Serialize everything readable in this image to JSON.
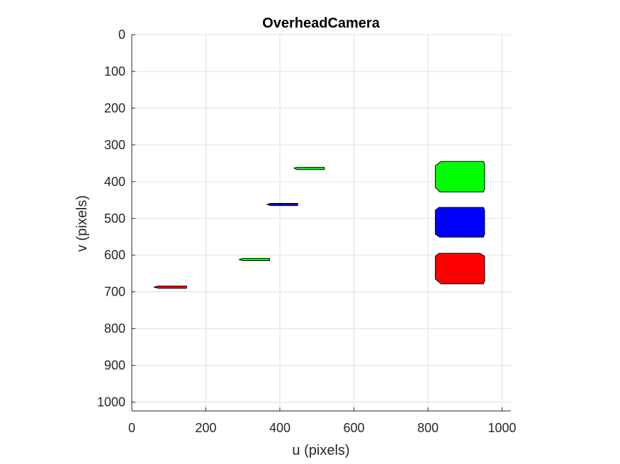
{
  "chart_data": {
    "type": "scatter",
    "title": "OverheadCamera",
    "xlabel": "u (pixels)",
    "ylabel": "v (pixels)",
    "xlim": [
      0,
      1024
    ],
    "ylim": [
      1024,
      0
    ],
    "y_reversed": true,
    "grid": true,
    "xticks": [
      0,
      200,
      400,
      600,
      800,
      1000
    ],
    "yticks": [
      0,
      100,
      200,
      300,
      400,
      500,
      600,
      700,
      800,
      900,
      1000
    ],
    "series": [
      {
        "color": "#00ff00",
        "points": [
          [
            950,
            345
          ],
          [
            835,
            345
          ],
          [
            820,
            357
          ],
          [
            820,
            415
          ],
          [
            832,
            428
          ],
          [
            950,
            428
          ],
          [
            953,
            420
          ],
          [
            953,
            353
          ]
        ]
      },
      {
        "color": "#0000ff",
        "points": [
          [
            950,
            470
          ],
          [
            830,
            470
          ],
          [
            820,
            478
          ],
          [
            820,
            543
          ],
          [
            832,
            551
          ],
          [
            950,
            551
          ],
          [
            953,
            543
          ],
          [
            953,
            478
          ]
        ]
      },
      {
        "color": "#ff0000",
        "points": [
          [
            940,
            595
          ],
          [
            830,
            595
          ],
          [
            820,
            603
          ],
          [
            820,
            665
          ],
          [
            835,
            678
          ],
          [
            950,
            678
          ],
          [
            953,
            670
          ],
          [
            953,
            603
          ]
        ]
      },
      {
        "color": "#00ff00",
        "points": [
          [
            438,
            363
          ],
          [
            446,
            361
          ],
          [
            520,
            361
          ],
          [
            520,
            367
          ],
          [
            446,
            367
          ]
        ]
      },
      {
        "color": "#0000ff",
        "points": [
          [
            365,
            462
          ],
          [
            375,
            459
          ],
          [
            448,
            459
          ],
          [
            448,
            465
          ],
          [
            375,
            465
          ]
        ]
      },
      {
        "color": "#00ff00",
        "points": [
          [
            290,
            612
          ],
          [
            300,
            609
          ],
          [
            372,
            609
          ],
          [
            372,
            615
          ],
          [
            300,
            615
          ]
        ]
      },
      {
        "color": "#ff0000",
        "points": [
          [
            60,
            687
          ],
          [
            72,
            684
          ],
          [
            148,
            684
          ],
          [
            148,
            690
          ],
          [
            72,
            690
          ]
        ]
      }
    ]
  }
}
